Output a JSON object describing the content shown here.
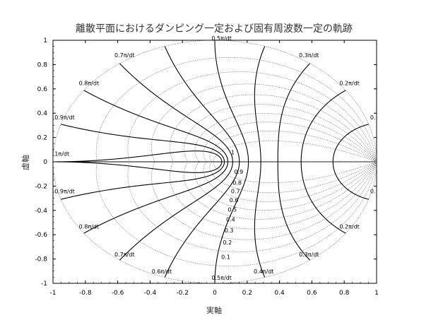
{
  "chart_data": {
    "type": "line",
    "title": "離散平面におけるダンピング一定および固有周波数一定の軌跡",
    "xlabel": "実軸",
    "ylabel": "虚軸",
    "xlim": [
      -1,
      1
    ],
    "ylim": [
      -1,
      1
    ],
    "x_ticks": [
      -1,
      -0.8,
      -0.6,
      -0.4,
      -0.2,
      0,
      0.2,
      0.4,
      0.6,
      0.8,
      1
    ],
    "y_ticks": [
      -1,
      -0.8,
      -0.6,
      -0.4,
      -0.2,
      0,
      0.2,
      0.4,
      0.6,
      0.8,
      1
    ],
    "x_tick_labels": [
      "-1",
      "-0.8",
      "-0.6",
      "-0.4",
      "-0.2",
      "0",
      "0.2",
      "0.4",
      "0.6",
      "0.8",
      "1"
    ],
    "y_tick_labels": [
      "-1",
      "-0.8",
      "-0.6",
      "-0.4",
      "-0.2",
      "0",
      "0.2",
      "0.4",
      "0.6",
      "0.8",
      "1"
    ],
    "grid": true,
    "series": [
      {
        "style": "dotted",
        "damping_values": [
          0,
          0.1,
          0.2,
          0.3,
          0.4,
          0.5,
          0.6,
          0.7,
          0.8,
          0.9,
          1
        ]
      },
      {
        "style": "solid",
        "natural_frequency_values": [
          0.1,
          0.2,
          0.3,
          0.4,
          0.5,
          0.6,
          0.7,
          0.8,
          0.9,
          1
        ]
      }
    ],
    "damping_labels": [
      {
        "text": "1",
        "x": 0.1,
        "y": 0.06
      },
      {
        "text": "0.9",
        "x": 0.12,
        "y": -0.1
      },
      {
        "text": "0.8",
        "x": 0.11,
        "y": -0.19
      },
      {
        "text": "0.7",
        "x": 0.1,
        "y": -0.26
      },
      {
        "text": "0.6",
        "x": 0.09,
        "y": -0.33
      },
      {
        "text": "0.5",
        "x": 0.08,
        "y": -0.41
      },
      {
        "text": "0.4",
        "x": 0.07,
        "y": -0.49
      },
      {
        "text": "0.3",
        "x": 0.06,
        "y": -0.58
      },
      {
        "text": "0.2",
        "x": 0.05,
        "y": -0.68
      },
      {
        "text": "0.1",
        "x": 0.04,
        "y": -0.8
      }
    ],
    "frequency_labels": [
      {
        "text": "0.5π/dt",
        "x": -0.02,
        "y": 1.0
      },
      {
        "text": "0.7π/dt",
        "x": -0.62,
        "y": 0.86
      },
      {
        "text": "0.3π/dt",
        "x": 0.52,
        "y": 0.86
      },
      {
        "text": "0.8π/dt",
        "x": -0.84,
        "y": 0.63
      },
      {
        "text": "0.2π/dt",
        "x": 0.77,
        "y": 0.63
      },
      {
        "text": "0.9π/dt",
        "x": -0.99,
        "y": 0.35
      },
      {
        "text": "0.",
        "x": 0.96,
        "y": 0.35
      },
      {
        "text": "1π/dt",
        "x": -0.99,
        "y": 0.05
      },
      {
        "text": "0.9π/dt",
        "x": -0.99,
        "y": -0.26
      },
      {
        "text": "0.",
        "x": 0.96,
        "y": -0.26
      },
      {
        "text": "0.8π/dt",
        "x": -0.84,
        "y": -0.55
      },
      {
        "text": "0.2π/dt",
        "x": 0.77,
        "y": -0.55
      },
      {
        "text": "0.7π/dt",
        "x": -0.62,
        "y": -0.78
      },
      {
        "text": "0.3π/dt",
        "x": 0.52,
        "y": -0.78
      },
      {
        "text": "0.6π/dt",
        "x": -0.39,
        "y": -0.92
      },
      {
        "text": "0.4π/dt",
        "x": 0.24,
        "y": -0.92
      },
      {
        "text": "0.5π/dt",
        "x": -0.02,
        "y": -0.97
      }
    ]
  }
}
